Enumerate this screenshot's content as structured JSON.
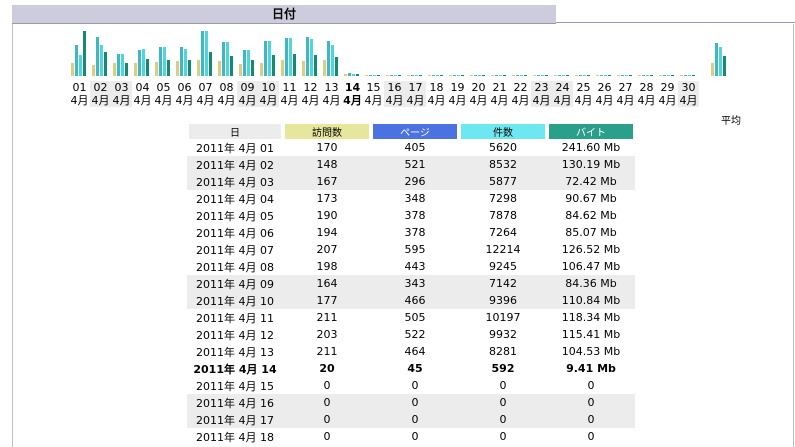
{
  "header": {
    "title": "日付"
  },
  "colors": {
    "visits": "#e6e69c",
    "pages": "#4a72e0",
    "hits": "#6ee8f0",
    "bytes": "#2aa08a",
    "visits_bar": "#d8d080",
    "pages_bar": "#3fb8c4",
    "hits_bar": "#4cd6e0",
    "bytes_bar": "#138a72"
  },
  "chart_data": {
    "type": "bar",
    "categories": [
      {
        "day": "01",
        "month": "4月"
      },
      {
        "day": "02",
        "month": "4月"
      },
      {
        "day": "03",
        "month": "4月"
      },
      {
        "day": "04",
        "month": "4月"
      },
      {
        "day": "05",
        "month": "4月"
      },
      {
        "day": "06",
        "month": "4月"
      },
      {
        "day": "07",
        "month": "4月"
      },
      {
        "day": "08",
        "month": "4月"
      },
      {
        "day": "09",
        "month": "4月"
      },
      {
        "day": "10",
        "month": "4月"
      },
      {
        "day": "11",
        "month": "4月"
      },
      {
        "day": "12",
        "month": "4月"
      },
      {
        "day": "13",
        "month": "4月"
      },
      {
        "day": "14",
        "month": "4月"
      },
      {
        "day": "15",
        "month": "4月"
      },
      {
        "day": "16",
        "month": "4月"
      },
      {
        "day": "17",
        "month": "4月"
      },
      {
        "day": "18",
        "month": "4月"
      },
      {
        "day": "19",
        "month": "4月"
      },
      {
        "day": "20",
        "month": "4月"
      },
      {
        "day": "21",
        "month": "4月"
      },
      {
        "day": "22",
        "month": "4月"
      },
      {
        "day": "23",
        "month": "4月"
      },
      {
        "day": "24",
        "month": "4月"
      },
      {
        "day": "25",
        "month": "4月"
      },
      {
        "day": "26",
        "month": "4月"
      },
      {
        "day": "27",
        "month": "4月"
      },
      {
        "day": "28",
        "month": "4月"
      },
      {
        "day": "29",
        "month": "4月"
      },
      {
        "day": "30",
        "month": "4月"
      }
    ],
    "weekend_indices": [
      1,
      2,
      8,
      9,
      15,
      16,
      22,
      23,
      29
    ],
    "today_index": 13,
    "series": [
      {
        "name": "訪問数",
        "values": [
          170,
          148,
          167,
          173,
          190,
          194,
          207,
          198,
          164,
          177,
          211,
          203,
          211,
          20,
          0,
          0,
          0,
          0,
          0,
          0,
          0,
          0,
          0,
          0,
          0,
          0,
          0,
          0,
          0,
          0
        ]
      },
      {
        "name": "ページ",
        "values": [
          405,
          521,
          296,
          348,
          378,
          378,
          595,
          443,
          343,
          466,
          505,
          522,
          464,
          45,
          0,
          0,
          0,
          0,
          0,
          0,
          0,
          0,
          0,
          0,
          0,
          0,
          0,
          0,
          0,
          0
        ]
      },
      {
        "name": "件数",
        "values": [
          5620,
          8532,
          5877,
          7298,
          7878,
          7264,
          12214,
          9245,
          7142,
          9396,
          10197,
          9932,
          8281,
          592,
          0,
          0,
          0,
          0,
          0,
          0,
          0,
          0,
          0,
          0,
          0,
          0,
          0,
          0,
          0,
          0
        ]
      },
      {
        "name": "バイト",
        "values": [
          241.6,
          130.19,
          72.42,
          90.67,
          84.62,
          85.07,
          126.52,
          106.47,
          84.36,
          110.84,
          118.34,
          115.41,
          104.53,
          9.41,
          0,
          0,
          0,
          0,
          0,
          0,
          0,
          0,
          0,
          0,
          0,
          0,
          0,
          0,
          0,
          0
        ]
      }
    ],
    "average_label": "平均",
    "averages": {
      "visits": 172.8,
      "pages": 436.4,
      "hits": 7797.5,
      "bytes": 106.78
    }
  },
  "table": {
    "headers": [
      "日",
      "訪問数",
      "ページ",
      "件数",
      "バイト"
    ],
    "rows": [
      {
        "date": "2011年 4月 01",
        "visits": "170",
        "pages": "405",
        "hits": "5620",
        "bytes": "241.60 Mb"
      },
      {
        "date": "2011年 4月 02",
        "visits": "148",
        "pages": "521",
        "hits": "8532",
        "bytes": "130.19 Mb"
      },
      {
        "date": "2011年 4月 03",
        "visits": "167",
        "pages": "296",
        "hits": "5877",
        "bytes": "72.42 Mb"
      },
      {
        "date": "2011年 4月 04",
        "visits": "173",
        "pages": "348",
        "hits": "7298",
        "bytes": "90.67 Mb"
      },
      {
        "date": "2011年 4月 05",
        "visits": "190",
        "pages": "378",
        "hits": "7878",
        "bytes": "84.62 Mb"
      },
      {
        "date": "2011年 4月 06",
        "visits": "194",
        "pages": "378",
        "hits": "7264",
        "bytes": "85.07 Mb"
      },
      {
        "date": "2011年 4月 07",
        "visits": "207",
        "pages": "595",
        "hits": "12214",
        "bytes": "126.52 Mb"
      },
      {
        "date": "2011年 4月 08",
        "visits": "198",
        "pages": "443",
        "hits": "9245",
        "bytes": "106.47 Mb"
      },
      {
        "date": "2011年 4月 09",
        "visits": "164",
        "pages": "343",
        "hits": "7142",
        "bytes": "84.36 Mb"
      },
      {
        "date": "2011年 4月 10",
        "visits": "177",
        "pages": "466",
        "hits": "9396",
        "bytes": "110.84 Mb"
      },
      {
        "date": "2011年 4月 11",
        "visits": "211",
        "pages": "505",
        "hits": "10197",
        "bytes": "118.34 Mb"
      },
      {
        "date": "2011年 4月 12",
        "visits": "203",
        "pages": "522",
        "hits": "9932",
        "bytes": "115.41 Mb"
      },
      {
        "date": "2011年 4月 13",
        "visits": "211",
        "pages": "464",
        "hits": "8281",
        "bytes": "104.53 Mb"
      },
      {
        "date": "2011年 4月 14",
        "visits": "20",
        "pages": "45",
        "hits": "592",
        "bytes": "9.41 Mb"
      },
      {
        "date": "2011年 4月 15",
        "visits": "0",
        "pages": "0",
        "hits": "0",
        "bytes": "0"
      },
      {
        "date": "2011年 4月 16",
        "visits": "0",
        "pages": "0",
        "hits": "0",
        "bytes": "0"
      },
      {
        "date": "2011年 4月 17",
        "visits": "0",
        "pages": "0",
        "hits": "0",
        "bytes": "0"
      },
      {
        "date": "2011年 4月 18",
        "visits": "0",
        "pages": "0",
        "hits": "0",
        "bytes": "0"
      }
    ]
  }
}
